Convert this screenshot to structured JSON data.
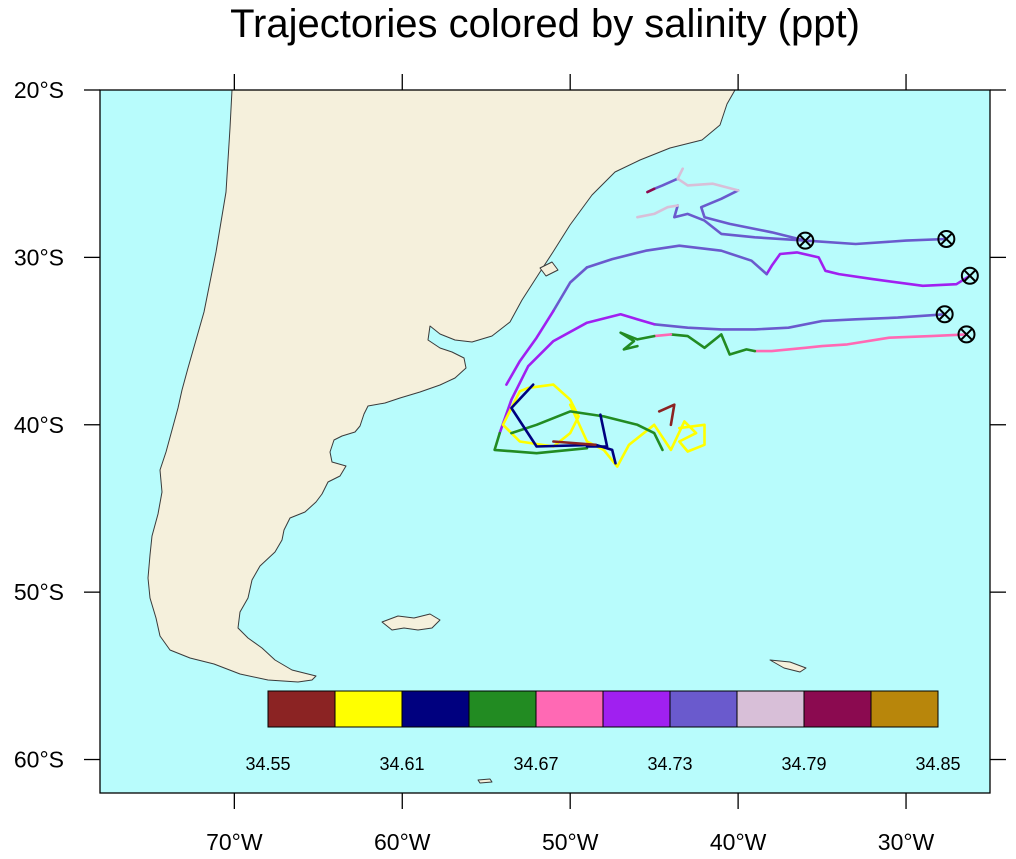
{
  "title": "Trajectories colored by salinity (ppt)",
  "colors": {
    "ocean": "#b8fcfc",
    "land": "#f5f0dc",
    "coast": "#3a3a3a",
    "frame": "#000000"
  },
  "axes": {
    "longitude_labels": [
      "70°W",
      "60°W",
      "50°W",
      "40°W",
      "30°W"
    ],
    "latitude_labels": [
      "20°S",
      "30°S",
      "40°S",
      "50°S",
      "60°S"
    ],
    "lon_range": [
      -78,
      -25
    ],
    "lat_range": [
      -62,
      -20
    ]
  },
  "colorbar": {
    "colors": [
      "#8b2323",
      "#ffff00",
      "#00007f",
      "#228b22",
      "#ff69b4",
      "#a020f0",
      "#6a5acd",
      "#d8bfd8",
      "#8b0a50",
      "#b8860b"
    ],
    "labels": [
      "34.55",
      "34.61",
      "34.67",
      "34.73",
      "34.79",
      "34.85"
    ]
  },
  "chart_data": {
    "type": "map",
    "title": "Trajectories colored by salinity (ppt)",
    "projection": "cylindrical equidistant",
    "lon_range": [
      -78,
      -25
    ],
    "lat_range": [
      -62,
      -20
    ],
    "colorbar_levels": [
      34.55,
      34.61,
      34.67,
      34.73,
      34.79,
      34.85
    ],
    "release_markers": [
      {
        "lon": -36.0,
        "lat": -29.0
      },
      {
        "lon": -27.6,
        "lat": -28.9
      },
      {
        "lon": -26.2,
        "lat": -31.1
      },
      {
        "lon": -27.7,
        "lat": -33.4
      },
      {
        "lon": -26.4,
        "lat": -34.6
      }
    ],
    "trajectories": [
      {
        "segments": [
          {
            "color": "#6a5acd",
            "points": [
              [
                -27.6,
                -28.9
              ],
              [
                -30,
                -29.0
              ],
              [
                -33,
                -29.2
              ],
              [
                -36,
                -29.0
              ],
              [
                -39,
                -28.8
              ],
              [
                -41,
                -28.6
              ],
              [
                -42,
                -27.8
              ],
              [
                -43,
                -27.4
              ],
              [
                -43.8,
                -27.6
              ],
              [
                -43.6,
                -26.9
              ]
            ]
          },
          {
            "color": "#d8bfd8",
            "points": [
              [
                -43.6,
                -26.9
              ],
              [
                -44.2,
                -27.0
              ],
              [
                -45.0,
                -27.4
              ],
              [
                -46.0,
                -27.6
              ]
            ]
          },
          {
            "color": "#6a5acd",
            "points": [
              [
                -36.0,
                -29.0
              ],
              [
                -38.0,
                -28.5
              ],
              [
                -40.5,
                -28.0
              ],
              [
                -42.0,
                -27.6
              ],
              [
                -42.2,
                -27.0
              ],
              [
                -41.0,
                -26.5
              ],
              [
                -40.0,
                -26.0
              ]
            ]
          },
          {
            "color": "#d8bfd8",
            "points": [
              [
                -40.0,
                -26.0
              ],
              [
                -41.5,
                -25.6
              ],
              [
                -43.0,
                -25.7
              ],
              [
                -43.6,
                -25.3
              ]
            ]
          },
          {
            "color": "#6a5acd",
            "points": [
              [
                -43.6,
                -25.3
              ],
              [
                -44.5,
                -25.7
              ],
              [
                -45.0,
                -25.9
              ]
            ]
          },
          {
            "color": "#8b0a50",
            "points": [
              [
                -45.0,
                -25.9
              ],
              [
                -45.4,
                -26.1
              ]
            ]
          },
          {
            "color": "#d8bfd8",
            "points": [
              [
                -43.6,
                -25.3
              ],
              [
                -43.3,
                -24.7
              ]
            ]
          }
        ]
      },
      {
        "segments": [
          {
            "color": "#a020f0",
            "points": [
              [
                -26.2,
                -31.1
              ],
              [
                -27.0,
                -31.6
              ],
              [
                -29.0,
                -31.7
              ],
              [
                -32.0,
                -31.3
              ],
              [
                -34.0,
                -31.0
              ],
              [
                -34.8,
                -30.8
              ],
              [
                -35.2,
                -30.0
              ],
              [
                -36.5,
                -29.7
              ],
              [
                -37.5,
                -29.8
              ],
              [
                -38.0,
                -30.5
              ],
              [
                -38.3,
                -31.0
              ]
            ]
          },
          {
            "color": "#6a5acd",
            "points": [
              [
                -38.3,
                -31.0
              ],
              [
                -39.2,
                -30.2
              ],
              [
                -41.0,
                -29.6
              ],
              [
                -43.5,
                -29.3
              ],
              [
                -45.5,
                -29.6
              ],
              [
                -47.5,
                -30.1
              ],
              [
                -49.0,
                -30.6
              ]
            ]
          },
          {
            "color": "#6a5acd",
            "points": [
              [
                -49.0,
                -30.6
              ],
              [
                -50.0,
                -31.5
              ],
              [
                -51.0,
                -33.2
              ]
            ]
          },
          {
            "color": "#a020f0",
            "points": [
              [
                -51.0,
                -33.2
              ],
              [
                -52.0,
                -34.8
              ],
              [
                -53.0,
                -36.2
              ],
              [
                -53.8,
                -37.6
              ]
            ]
          }
        ]
      },
      {
        "segments": [
          {
            "color": "#6a5acd",
            "points": [
              [
                -27.7,
                -33.4
              ],
              [
                -30.5,
                -33.6
              ],
              [
                -33.0,
                -33.7
              ],
              [
                -35.0,
                -33.8
              ],
              [
                -37.0,
                -34.2
              ],
              [
                -39.0,
                -34.3
              ],
              [
                -41.0,
                -34.3
              ],
              [
                -43.0,
                -34.2
              ],
              [
                -45.0,
                -34.0
              ]
            ]
          },
          {
            "color": "#a020f0",
            "points": [
              [
                -45.0,
                -34.0
              ],
              [
                -47.0,
                -33.4
              ],
              [
                -49.0,
                -33.9
              ],
              [
                -51.0,
                -35.0
              ],
              [
                -52.5,
                -36.5
              ],
              [
                -53.5,
                -38.5
              ],
              [
                -54.2,
                -40.5
              ]
            ]
          },
          {
            "color": "#228b22",
            "points": [
              [
                -54.2,
                -40.5
              ],
              [
                -54.5,
                -41.5
              ],
              [
                -52.0,
                -41.7
              ],
              [
                -49.0,
                -41.4
              ]
            ]
          }
        ]
      },
      {
        "segments": [
          {
            "color": "#ff69b4",
            "points": [
              [
                -26.4,
                -34.6
              ],
              [
                -28.5,
                -34.7
              ],
              [
                -31.0,
                -34.8
              ],
              [
                -33.5,
                -35.2
              ],
              [
                -35.0,
                -35.3
              ],
              [
                -36.0,
                -35.4
              ],
              [
                -37.0,
                -35.5
              ],
              [
                -38.0,
                -35.6
              ],
              [
                -39.0,
                -35.6
              ]
            ]
          },
          {
            "color": "#228b22",
            "points": [
              [
                -39.0,
                -35.6
              ],
              [
                -39.5,
                -35.5
              ],
              [
                -40.5,
                -35.8
              ],
              [
                -41.0,
                -34.6
              ],
              [
                -42.0,
                -35.4
              ],
              [
                -43.0,
                -34.7
              ],
              [
                -44.0,
                -34.6
              ]
            ]
          },
          {
            "color": "#ff69b4",
            "points": [
              [
                -44.0,
                -34.6
              ],
              [
                -45.0,
                -34.7
              ]
            ]
          },
          {
            "color": "#228b22",
            "points": [
              [
                -45.0,
                -34.7
              ],
              [
                -46.0,
                -34.9
              ],
              [
                -47.0,
                -34.5
              ],
              [
                -46.2,
                -35.0
              ],
              [
                -46.8,
                -35.5
              ],
              [
                -46.0,
                -35.3
              ]
            ]
          }
        ]
      },
      {
        "segments": [
          {
            "color": "#ffff00",
            "points": [
              [
                -53.0,
                -38.0
              ],
              [
                -54.0,
                -40.0
              ],
              [
                -53.0,
                -41.0
              ],
              [
                -51.0,
                -41.3
              ],
              [
                -50.0,
                -40.5
              ],
              [
                -49.5,
                -39.5
              ],
              [
                -50.0,
                -38.5
              ],
              [
                -51.0,
                -37.6
              ],
              [
                -52.5,
                -37.8
              ],
              [
                -53.0,
                -38.0
              ]
            ]
          },
          {
            "color": "#ffff00",
            "points": [
              [
                -50.0,
                -38.8
              ],
              [
                -49.0,
                -41.0
              ],
              [
                -48.0,
                -41.5
              ],
              [
                -47.2,
                -42.5
              ],
              [
                -46.5,
                -41.2
              ],
              [
                -45.0,
                -40.0
              ],
              [
                -44.0,
                -41.5
              ],
              [
                -43.2,
                -39.8
              ],
              [
                -42.5,
                -40.5
              ],
              [
                -43.5,
                -41.0
              ],
              [
                -43.0,
                -41.6
              ],
              [
                -42.0,
                -41.2
              ],
              [
                -42.0,
                -40.0
              ],
              [
                -43.5,
                -40.2
              ]
            ]
          },
          {
            "color": "#228b22",
            "points": [
              [
                -53.5,
                -40.5
              ],
              [
                -52.0,
                -40.0
              ],
              [
                -50.0,
                -39.2
              ],
              [
                -48.0,
                -39.5
              ],
              [
                -46.0,
                -40.0
              ],
              [
                -45.0,
                -40.5
              ],
              [
                -44.5,
                -41.5
              ]
            ]
          },
          {
            "color": "#00007f",
            "points": [
              [
                -52.2,
                -37.6
              ],
              [
                -53.5,
                -39.0
              ],
              [
                -52.0,
                -41.3
              ],
              [
                -48.5,
                -41.2
              ],
              [
                -47.5,
                -41.5
              ],
              [
                -47.3,
                -42.3
              ]
            ]
          },
          {
            "color": "#00007f",
            "points": [
              [
                -48.2,
                -39.4
              ],
              [
                -47.8,
                -41.3
              ],
              [
                -49.0,
                -41.3
              ]
            ]
          },
          {
            "color": "#8b2323",
            "points": [
              [
                -44.0,
                -40.0
              ],
              [
                -43.8,
                -38.8
              ],
              [
                -44.7,
                -39.2
              ]
            ]
          },
          {
            "color": "#8b2323",
            "points": [
              [
                -51.0,
                -41.0
              ],
              [
                -48.5,
                -41.2
              ]
            ]
          }
        ]
      }
    ]
  }
}
